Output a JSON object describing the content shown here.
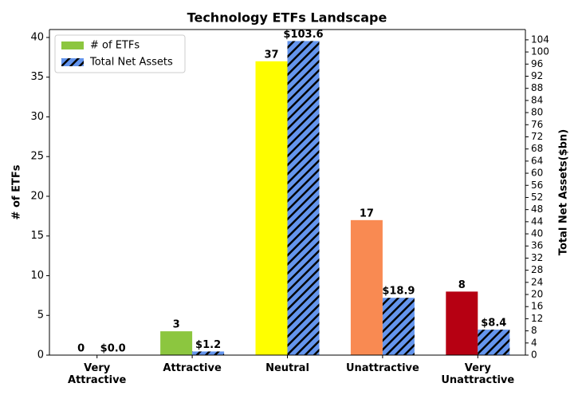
{
  "chart_data": {
    "type": "bar",
    "title": "Technology ETFs Landscape",
    "categories": [
      "Very\nAttractive",
      "Attractive",
      "Neutral",
      "Unattractive",
      "Very\nUnattractive"
    ],
    "series": [
      {
        "name": "# of ETFs",
        "color": "#8cc63f",
        "colors": [
          "#8cc63f",
          "#8cc63f",
          "#ffff00",
          "#f98a52",
          "#b60012"
        ],
        "values": [
          0,
          3,
          37,
          17,
          8
        ]
      },
      {
        "name": "Total Net Assets",
        "color": "#6495ed",
        "axis": "y2",
        "hatch": true,
        "values": [
          0.0,
          1.2,
          103.6,
          18.9,
          8.4
        ],
        "value_labels": [
          "$0.0",
          "$1.2",
          "$103.6",
          "$18.9",
          "$8.4"
        ]
      }
    ],
    "ylabel": "# of ETFs",
    "y2label": "Total Net Assets($bn)",
    "ylim": [
      0,
      41
    ],
    "yticks": [
      0,
      5,
      10,
      15,
      20,
      25,
      30,
      35,
      40
    ],
    "y2lim": [
      0,
      107.4
    ],
    "y2ticks": [
      0,
      4,
      8,
      12,
      16,
      20,
      24,
      28,
      32,
      36,
      40,
      44,
      48,
      52,
      56,
      60,
      64,
      68,
      72,
      76,
      80,
      84,
      88,
      92,
      96,
      100,
      104
    ],
    "legend": "upper left",
    "grid": false
  }
}
